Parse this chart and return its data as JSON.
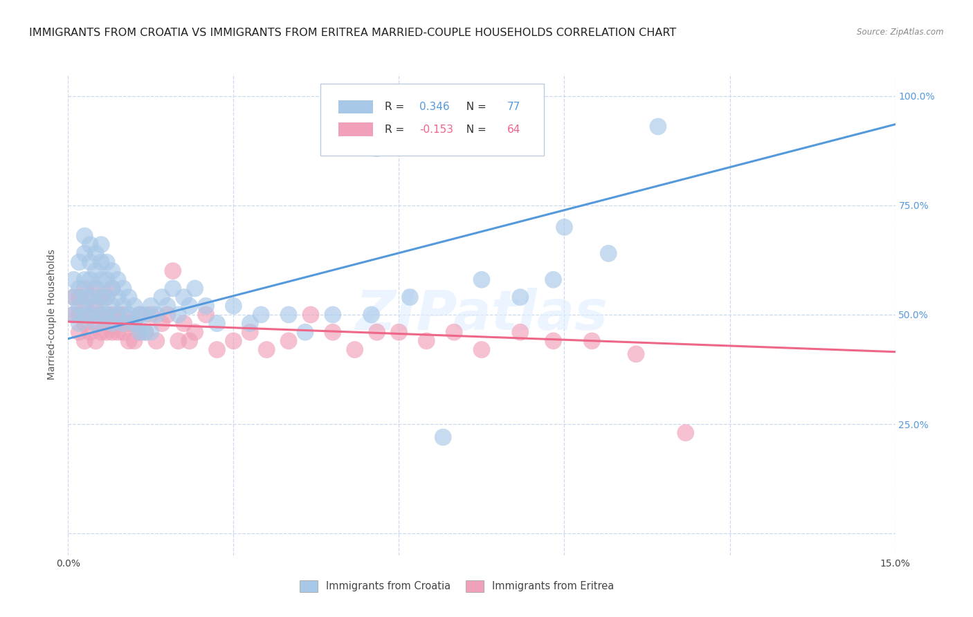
{
  "title": "IMMIGRANTS FROM CROATIA VS IMMIGRANTS FROM ERITREA MARRIED-COUPLE HOUSEHOLDS CORRELATION CHART",
  "source": "Source: ZipAtlas.com",
  "ylabel": "Married-couple Households",
  "x_min": 0.0,
  "x_max": 0.15,
  "y_min": 0.0,
  "y_max": 1.05,
  "x_ticks": [
    0.0,
    0.03,
    0.06,
    0.09,
    0.12,
    0.15
  ],
  "y_ticks": [
    0.0,
    0.25,
    0.5,
    0.75,
    1.0
  ],
  "croatia_color": "#a8c8e8",
  "eritrea_color": "#f0a0b8",
  "croatia_line_color": "#5599dd",
  "eritrea_line_color": "#ee6688",
  "croatia_R": 0.346,
  "croatia_N": 77,
  "eritrea_R": -0.153,
  "eritrea_N": 64,
  "background_color": "#ffffff",
  "grid_color": "#ccd8ee",
  "title_fontsize": 11.5,
  "axis_fontsize": 10,
  "legend_fontsize": 11,
  "watermark_text": "ZIPatlas",
  "croatia_x": [
    0.001,
    0.001,
    0.001,
    0.002,
    0.002,
    0.002,
    0.002,
    0.003,
    0.003,
    0.003,
    0.003,
    0.003,
    0.004,
    0.004,
    0.004,
    0.004,
    0.004,
    0.005,
    0.005,
    0.005,
    0.005,
    0.005,
    0.006,
    0.006,
    0.006,
    0.006,
    0.006,
    0.007,
    0.007,
    0.007,
    0.007,
    0.008,
    0.008,
    0.008,
    0.008,
    0.009,
    0.009,
    0.009,
    0.01,
    0.01,
    0.01,
    0.011,
    0.011,
    0.012,
    0.012,
    0.013,
    0.013,
    0.014,
    0.014,
    0.015,
    0.015,
    0.016,
    0.017,
    0.018,
    0.019,
    0.02,
    0.021,
    0.022,
    0.023,
    0.025,
    0.027,
    0.03,
    0.033,
    0.035,
    0.04,
    0.043,
    0.048,
    0.055,
    0.056,
    0.062,
    0.068,
    0.075,
    0.082,
    0.088,
    0.09,
    0.098,
    0.107
  ],
  "croatia_y": [
    0.5,
    0.54,
    0.58,
    0.48,
    0.52,
    0.56,
    0.62,
    0.5,
    0.54,
    0.58,
    0.64,
    0.68,
    0.5,
    0.54,
    0.58,
    0.62,
    0.66,
    0.48,
    0.52,
    0.56,
    0.6,
    0.64,
    0.5,
    0.54,
    0.58,
    0.62,
    0.66,
    0.5,
    0.54,
    0.58,
    0.62,
    0.48,
    0.52,
    0.56,
    0.6,
    0.5,
    0.54,
    0.58,
    0.48,
    0.52,
    0.56,
    0.5,
    0.54,
    0.48,
    0.52,
    0.46,
    0.5,
    0.46,
    0.5,
    0.46,
    0.52,
    0.5,
    0.54,
    0.52,
    0.56,
    0.5,
    0.54,
    0.52,
    0.56,
    0.52,
    0.48,
    0.52,
    0.48,
    0.5,
    0.5,
    0.46,
    0.5,
    0.5,
    0.88,
    0.54,
    0.22,
    0.58,
    0.54,
    0.58,
    0.7,
    0.64,
    0.93
  ],
  "eritrea_x": [
    0.001,
    0.001,
    0.002,
    0.002,
    0.002,
    0.003,
    0.003,
    0.003,
    0.003,
    0.004,
    0.004,
    0.004,
    0.005,
    0.005,
    0.005,
    0.005,
    0.006,
    0.006,
    0.006,
    0.007,
    0.007,
    0.007,
    0.008,
    0.008,
    0.008,
    0.009,
    0.009,
    0.01,
    0.01,
    0.011,
    0.011,
    0.012,
    0.012,
    0.013,
    0.013,
    0.014,
    0.015,
    0.016,
    0.017,
    0.018,
    0.019,
    0.02,
    0.021,
    0.022,
    0.023,
    0.025,
    0.027,
    0.03,
    0.033,
    0.036,
    0.04,
    0.044,
    0.048,
    0.052,
    0.056,
    0.06,
    0.065,
    0.07,
    0.075,
    0.082,
    0.088,
    0.095,
    0.103,
    0.112
  ],
  "eritrea_y": [
    0.5,
    0.54,
    0.46,
    0.5,
    0.54,
    0.44,
    0.48,
    0.52,
    0.56,
    0.46,
    0.5,
    0.54,
    0.44,
    0.48,
    0.52,
    0.56,
    0.46,
    0.5,
    0.54,
    0.46,
    0.5,
    0.54,
    0.46,
    0.5,
    0.56,
    0.46,
    0.5,
    0.46,
    0.5,
    0.44,
    0.48,
    0.44,
    0.48,
    0.46,
    0.5,
    0.46,
    0.5,
    0.44,
    0.48,
    0.5,
    0.6,
    0.44,
    0.48,
    0.44,
    0.46,
    0.5,
    0.42,
    0.44,
    0.46,
    0.42,
    0.44,
    0.5,
    0.46,
    0.42,
    0.46,
    0.46,
    0.44,
    0.46,
    0.42,
    0.46,
    0.44,
    0.44,
    0.41,
    0.23
  ]
}
